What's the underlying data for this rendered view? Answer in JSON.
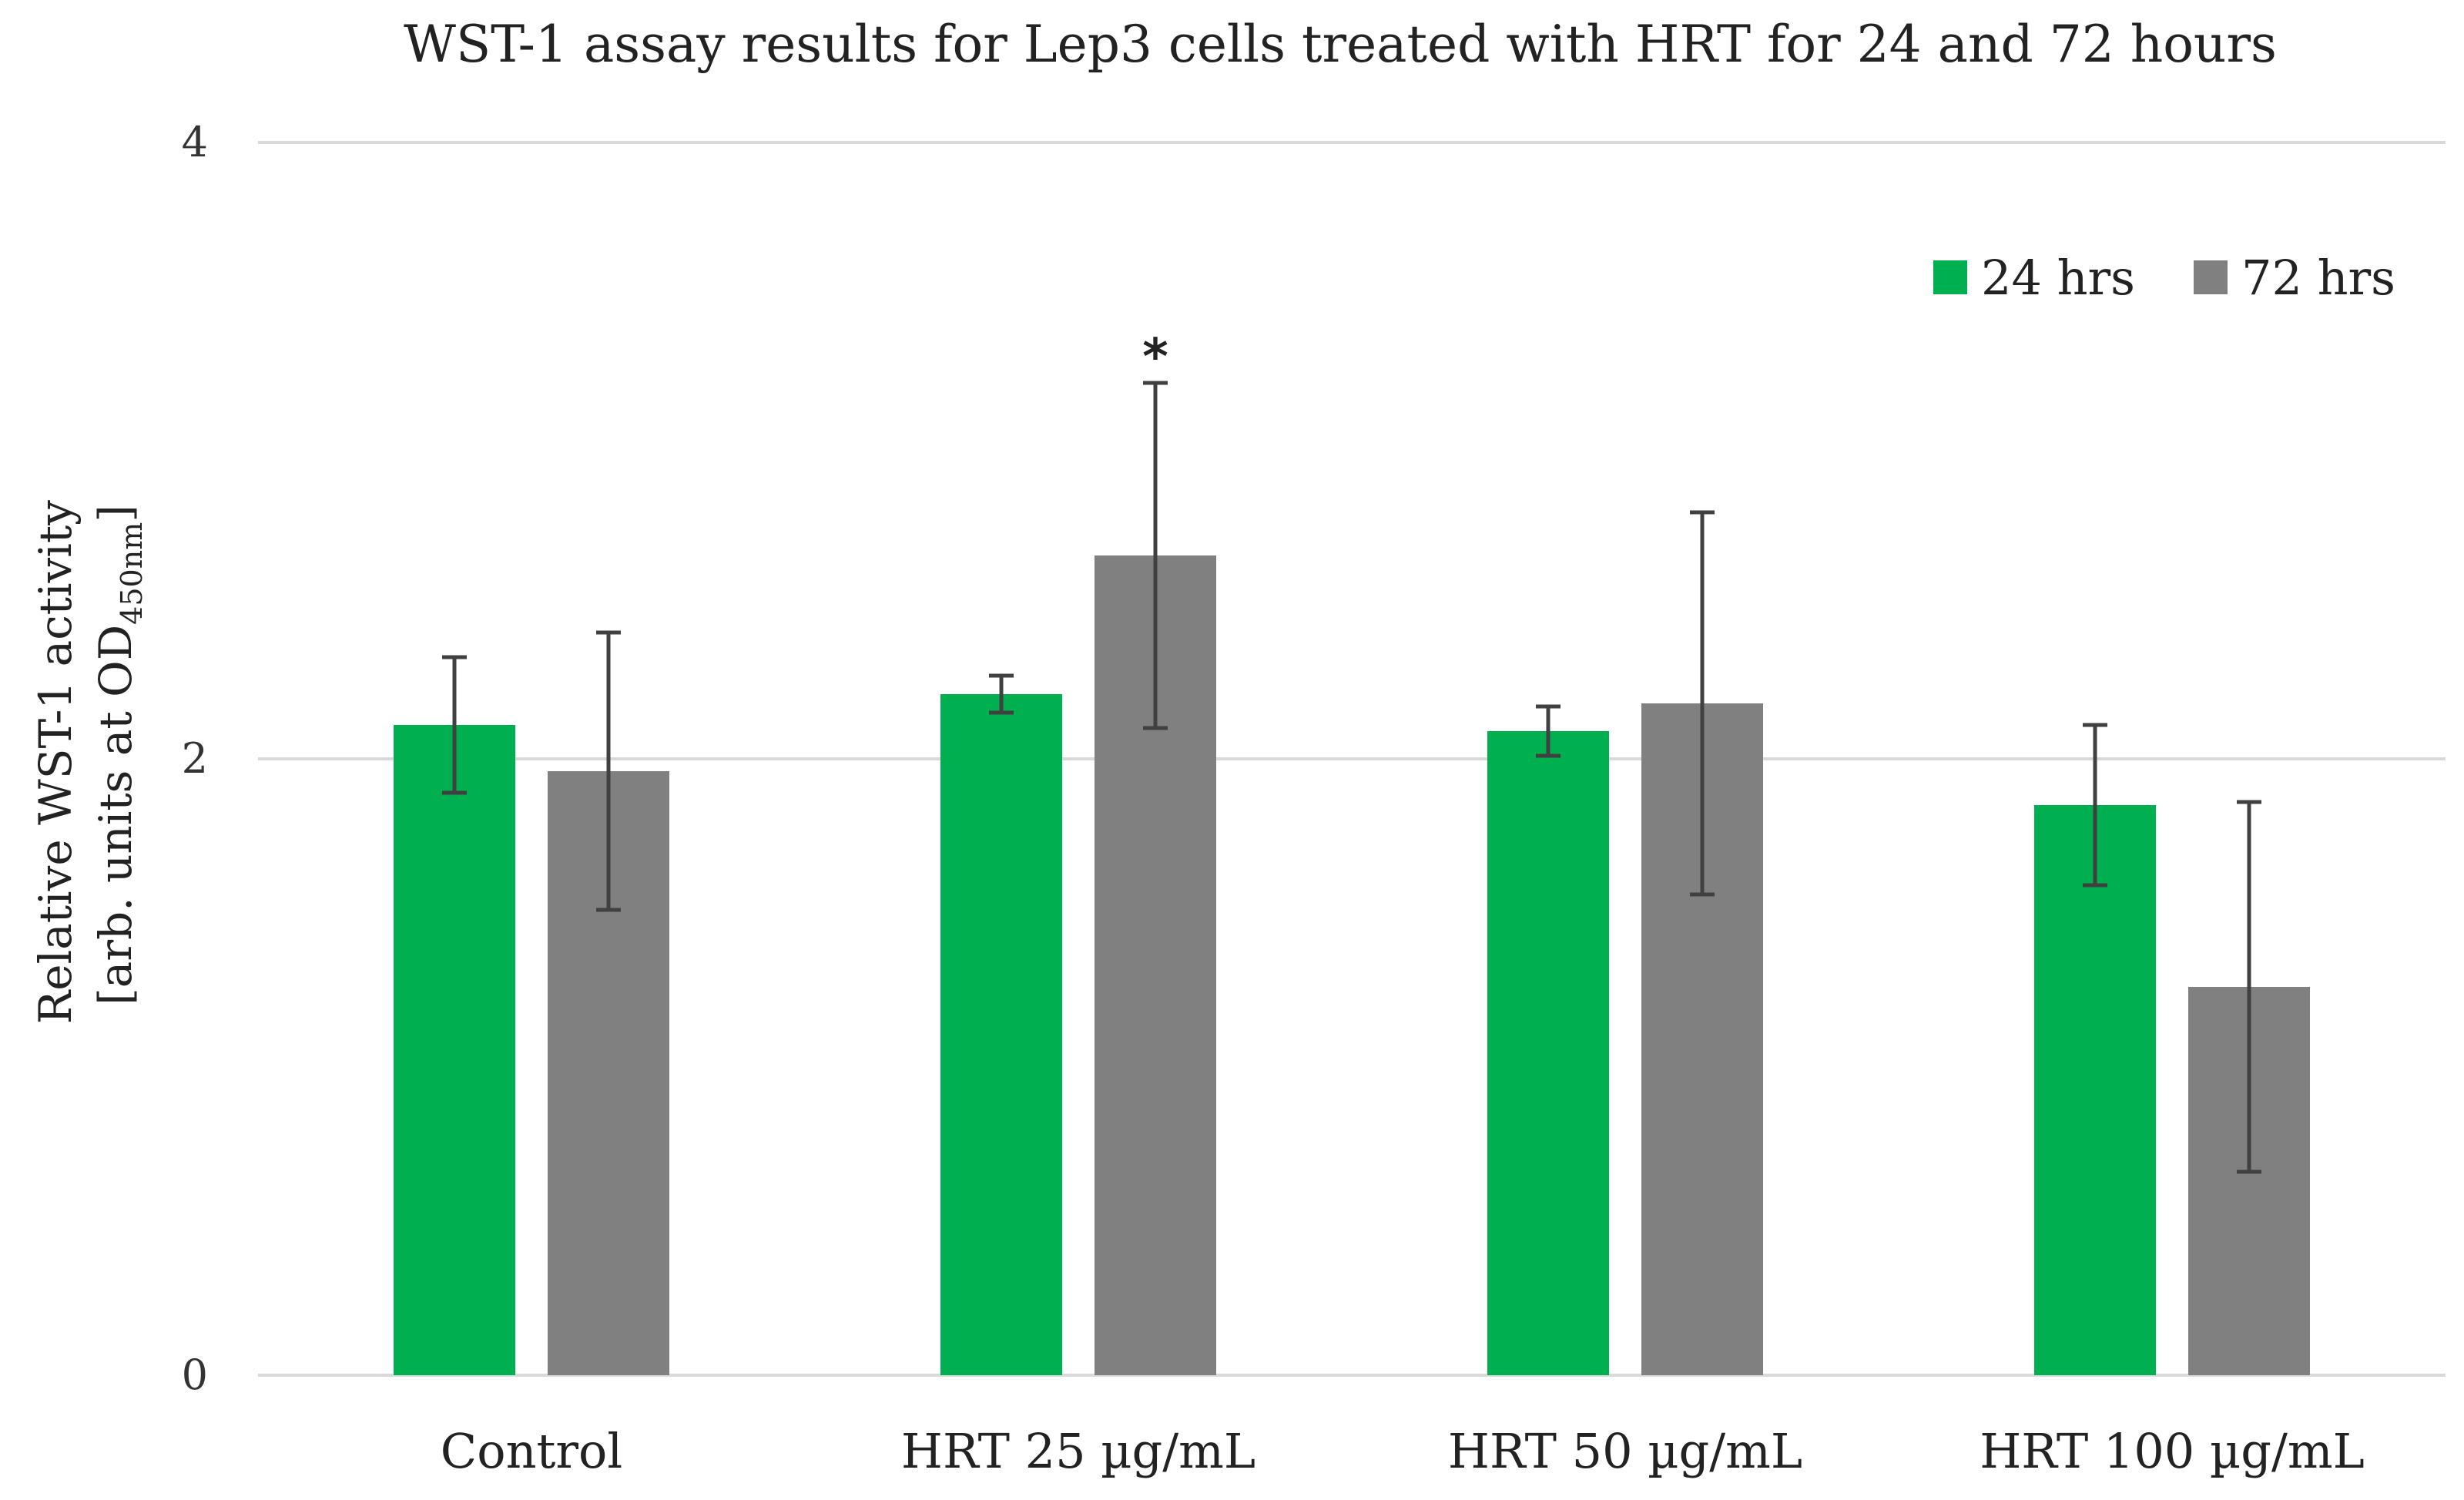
{
  "chart_data": {
    "type": "bar",
    "title": "WST-1 assay results for Lep3 cells treated with HRT for 24 and 72 hours",
    "ylabel_line1": "Relative WST-1 activity",
    "ylabel_line2_prefix": "[arb. units at OD",
    "ylabel_line2_subscript": "450nm",
    "ylabel_line2_suffix": "]",
    "xlabel": "",
    "ylim": [
      0,
      4
    ],
    "yticks": [
      {
        "value": 0,
        "label": "0"
      },
      {
        "value": 2,
        "label": "2"
      },
      {
        "value": 4,
        "label": "4"
      }
    ],
    "grid": true,
    "legend_position": "top-right",
    "categories": [
      "Control",
      "HRT 25 µg/mL",
      "HRT 50 µg/mL",
      "HRT 100 µg/mL"
    ],
    "series": [
      {
        "name": "24 hrs",
        "color": "#00b050",
        "values": [
          2.11,
          2.21,
          2.09,
          1.85
        ],
        "errors": [
          0.22,
          0.06,
          0.08,
          0.26
        ]
      },
      {
        "name": "72 hrs",
        "color": "#808080",
        "values": [
          1.96,
          2.66,
          2.18,
          1.26
        ],
        "errors": [
          0.45,
          0.56,
          0.62,
          0.6
        ]
      }
    ],
    "annotations": [
      {
        "text": "*",
        "category_index": 1,
        "series_index": 1
      }
    ]
  }
}
